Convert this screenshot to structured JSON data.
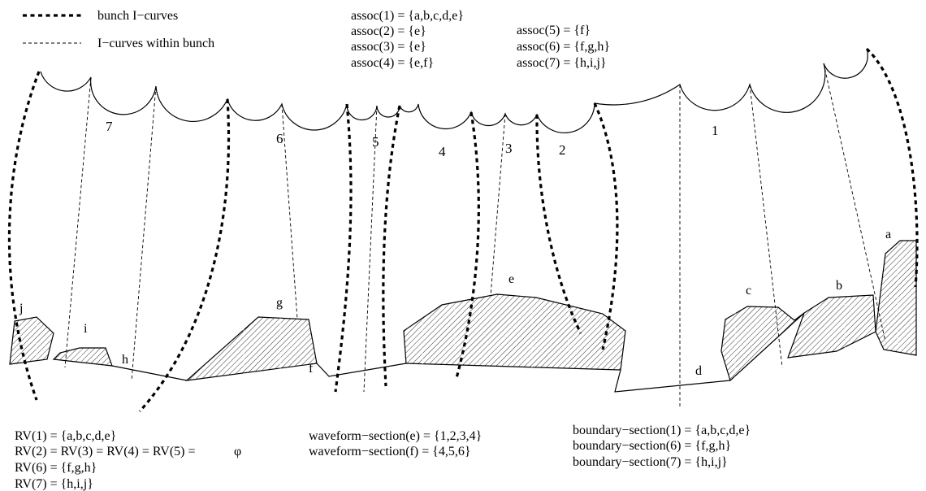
{
  "legend": {
    "bunch": "bunch I−curves",
    "within": "I−curves within bunch"
  },
  "assoc": [
    "assoc(1) = {a,b,c,d,e}",
    "assoc(2) = {e}",
    "assoc(3) = {e}",
    "assoc(4) = {e,f}",
    "assoc(5) = {f}",
    "assoc(6) = {f,g,h}",
    "assoc(7) = {h,i,j}"
  ],
  "rv": [
    "RV(1) = {a,b,c,d,e}",
    "RV(2) = RV(3) = RV(4) = RV(5) =",
    "RV(6) = {f,g,h}",
    "RV(7) = {h,i,j}"
  ],
  "rv_phi": "φ",
  "waveform": [
    "waveform−section(e) = {1,2,3,4}",
    "waveform−section(f) = {4,5,6}"
  ],
  "boundary": [
    "boundary−section(1) = {a,b,c,d,e}",
    "boundary−section(6) = {f,g,h}",
    "boundary−section(7) = {h,i,j}"
  ],
  "waveform_labels": [
    "7",
    "6",
    "5",
    "4",
    "3",
    "2",
    "1"
  ],
  "boundary_labels": [
    "j",
    "i",
    "h",
    "g",
    "f",
    "e",
    "d",
    "c",
    "b",
    "a"
  ]
}
